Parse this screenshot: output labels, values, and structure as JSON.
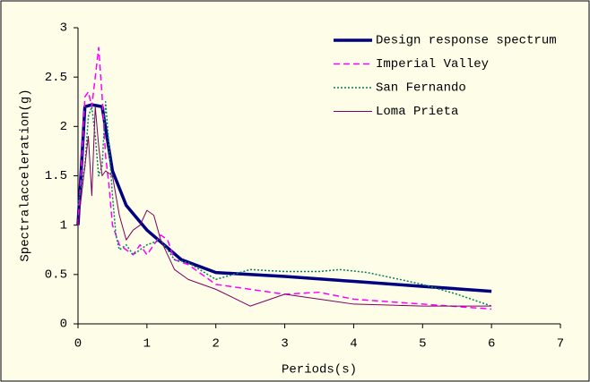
{
  "chart_data": {
    "type": "line",
    "xlabel": "Periods(s)",
    "ylabel": "Spectralacceleration(g)",
    "xlim": [
      0,
      7
    ],
    "xticks": [
      0,
      1,
      2,
      3,
      4,
      5,
      6,
      7
    ],
    "ylim": [
      0,
      3
    ],
    "yticks": [
      0,
      0.5,
      1,
      1.5,
      2,
      2.5,
      3
    ],
    "legend": "upper right",
    "series": [
      {
        "name": "Design response spectrum",
        "color": "#000080",
        "dash": "solid",
        "x": [
          0,
          0.1,
          0.2,
          0.35,
          0.5,
          0.7,
          1.0,
          1.5,
          2,
          3,
          4,
          5,
          6
        ],
        "values": [
          1.0,
          2.2,
          2.22,
          2.2,
          1.55,
          1.2,
          0.95,
          0.65,
          0.52,
          0.48,
          0.43,
          0.38,
          0.33
        ]
      },
      {
        "name": "Imperial Valley",
        "color": "#ff00ff",
        "dash": "dashed",
        "x": [
          0,
          0.05,
          0.1,
          0.15,
          0.2,
          0.25,
          0.3,
          0.35,
          0.4,
          0.45,
          0.5,
          0.55,
          0.6,
          0.7,
          0.8,
          0.9,
          1.0,
          1.1,
          1.2,
          1.3,
          1.4,
          1.6,
          2.0,
          3,
          3.5,
          4,
          5,
          6
        ],
        "values": [
          1.0,
          1.6,
          2.3,
          2.35,
          2.2,
          2.5,
          2.8,
          2.3,
          1.7,
          1.4,
          1.0,
          0.9,
          0.8,
          0.75,
          0.7,
          0.8,
          0.7,
          0.8,
          0.9,
          0.85,
          0.65,
          0.6,
          0.4,
          0.3,
          0.32,
          0.25,
          0.2,
          0.15
        ]
      },
      {
        "name": "San Fernando",
        "color": "#008060",
        "dash": "dotted",
        "x": [
          0,
          0.1,
          0.15,
          0.2,
          0.25,
          0.3,
          0.35,
          0.4,
          0.45,
          0.5,
          0.55,
          0.6,
          0.7,
          0.8,
          1.0,
          1.2,
          1.4,
          1.6,
          2.0,
          2.5,
          3,
          3.5,
          3.8,
          4.2,
          5,
          5.5,
          6
        ],
        "values": [
          1.2,
          1.6,
          2.1,
          2.2,
          1.9,
          1.5,
          1.6,
          2.25,
          1.8,
          1.3,
          0.9,
          0.75,
          0.8,
          0.7,
          0.8,
          0.85,
          0.65,
          0.62,
          0.45,
          0.55,
          0.53,
          0.53,
          0.55,
          0.52,
          0.4,
          0.3,
          0.18
        ]
      },
      {
        "name": "Loma Prieta",
        "color": "#800060",
        "dash": "solid-thin",
        "x": [
          0,
          0.05,
          0.1,
          0.15,
          0.2,
          0.25,
          0.3,
          0.35,
          0.4,
          0.5,
          0.6,
          0.7,
          0.8,
          0.9,
          1.0,
          1.1,
          1.2,
          1.4,
          1.6,
          2,
          2.5,
          3,
          3.5,
          4,
          5,
          6
        ],
        "values": [
          1.0,
          1.3,
          1.6,
          1.9,
          1.3,
          2.2,
          1.8,
          1.5,
          1.55,
          1.5,
          1.1,
          0.85,
          0.95,
          1.0,
          1.15,
          1.1,
          0.85,
          0.55,
          0.45,
          0.35,
          0.18,
          0.3,
          0.25,
          0.2,
          0.18,
          0.18
        ]
      }
    ]
  }
}
